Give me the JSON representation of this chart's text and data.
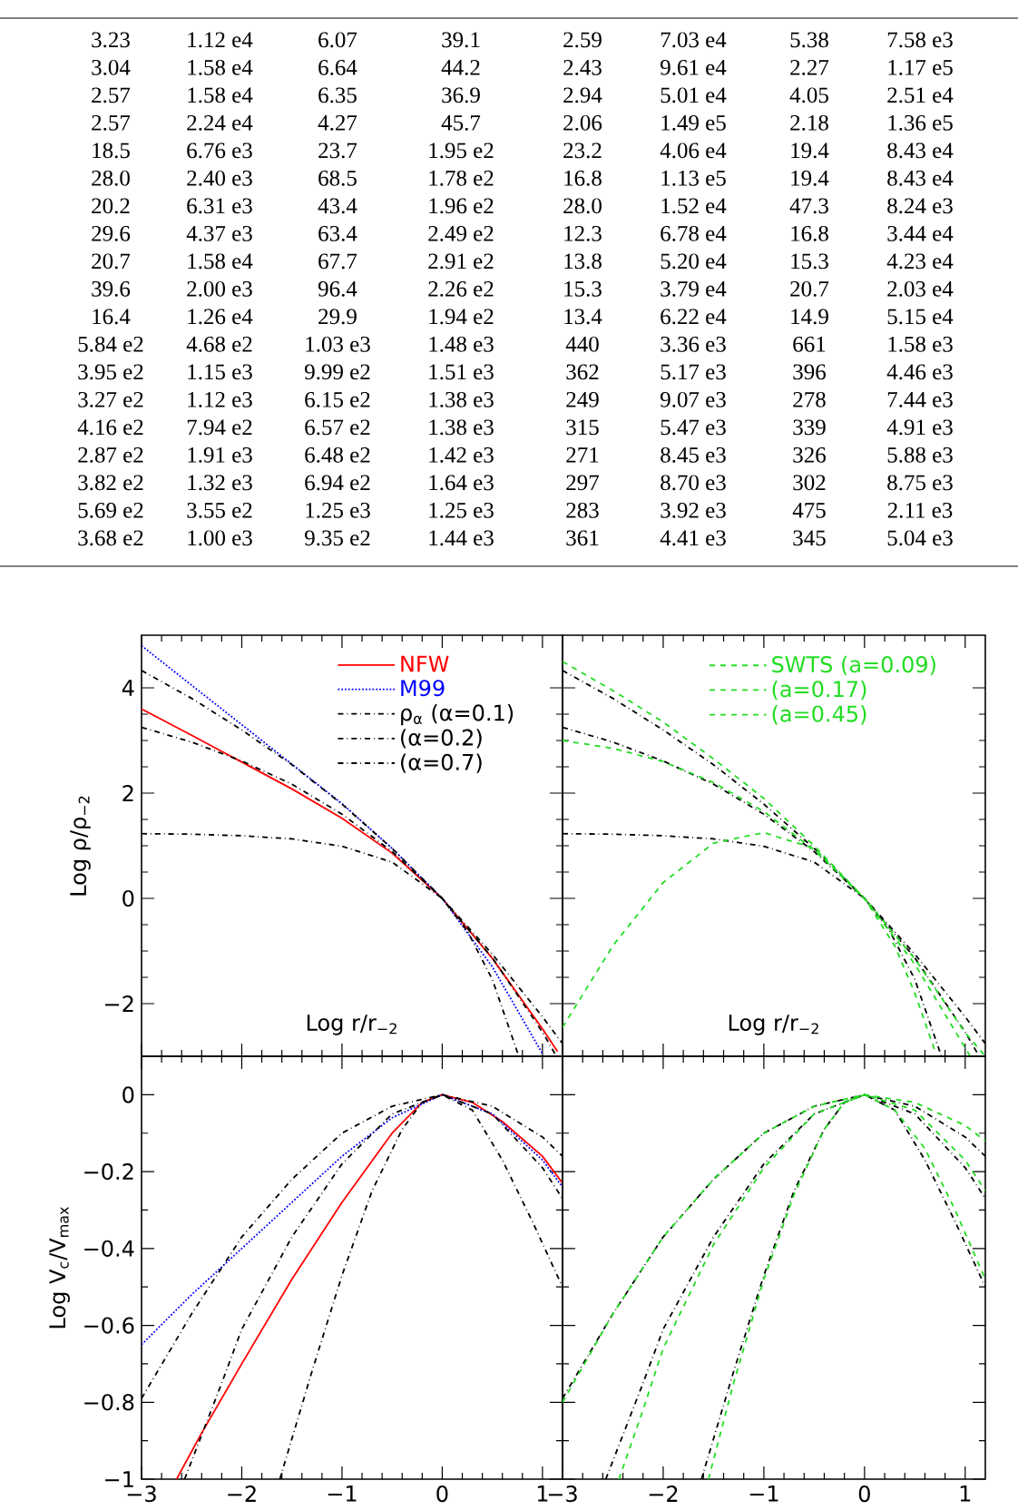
{
  "chart_data": [
    {
      "type": "other",
      "annotations": [
        "3.23",
        "1.12 e4",
        "6.07",
        "39.1",
        "2.59",
        "7.03 e4",
        "5.38",
        "7.58 e3",
        "3.04",
        "1.58 e4",
        "6.64",
        "44.2",
        "2.43",
        "9.61 e4",
        "2.27",
        "1.17 e5",
        "2.57",
        "1.58 e4",
        "6.35",
        "36.9",
        "2.94",
        "5.01 e4",
        "4.05",
        "2.51 e4",
        "2.57",
        "2.24 e4",
        "4.27",
        "45.7",
        "2.06",
        "1.49 e5",
        "2.18",
        "1.36 e5",
        "18.5",
        "6.76 e3",
        "23.7",
        "1.95 e2",
        "23.2",
        "4.06 e4",
        "19.4",
        "8.43 e4",
        "28.0",
        "2.40 e3",
        "68.5",
        "1.78 e2",
        "16.8",
        "1.13 e5",
        "19.4",
        "8.43 e4",
        "20.2",
        "6.31 e3",
        "43.4",
        "1.96 e2",
        "28.0",
        "1.52 e4",
        "47.3",
        "8.24 e3",
        "29.6",
        "4.37 e3",
        "63.4",
        "2.49 e2",
        "12.3",
        "6.78 e4",
        "16.8",
        "3.44 e4",
        "20.7",
        "1.58 e4",
        "67.7",
        "2.91 e2",
        "13.8",
        "5.20 e4",
        "15.3",
        "4.23 e4",
        "39.6",
        "2.00 e3",
        "96.4",
        "2.26 e2",
        "15.3",
        "3.79 e4",
        "20.7",
        "2.03 e4",
        "16.4",
        "1.26 e4",
        "29.9",
        "1.94 e2",
        "13.4",
        "6.22 e4",
        "14.9",
        "5.15 e4",
        "5.84 e2",
        "4.68 e2",
        "1.03 e3",
        "1.48 e3",
        "440",
        "3.36 e3",
        "661",
        "1.58 e3",
        "3.95 e2",
        "1.15 e3",
        "9.99 e2",
        "1.51 e3",
        "362",
        "5.17 e3",
        "396",
        "4.46 e3",
        "3.27 e2",
        "1.12 e3",
        "6.15 e2",
        "1.38 e3",
        "249",
        "9.07 e3",
        "278",
        "7.44 e3",
        "4.16 e2",
        "7.94 e2",
        "6.57 e2",
        "1.38 e3",
        "315",
        "5.47 e3",
        "339",
        "4.91 e3",
        "2.87 e2",
        "1.91 e3",
        "6.48 e2",
        "1.42 e3",
        "271",
        "8.45 e3",
        "326",
        "5.88 e3",
        "3.82 e2",
        "1.32 e3",
        "6.94 e2",
        "1.64 e3",
        "297",
        "8.70 e3",
        "302",
        "8.75 e3",
        "5.69 e2",
        "3.55 e2",
        "1.25 e3",
        "1.25 e3",
        "283",
        "3.92 e3",
        "475",
        "2.11 e3",
        "3.68 e2",
        "1.00 e3",
        "9.35 e2",
        "1.44 e3",
        "361",
        "4.41 e3",
        "345",
        "5.04 e3"
      ]
    },
    {
      "type": "line",
      "xlabel": "Log r/r$_{−2}$",
      "ylabel": "Log ρ/ρ$_{−2}$",
      "xlim": [
        -3,
        1.2
      ],
      "ylim": [
        -3,
        5
      ],
      "xticks": [
        -3,
        -2,
        -1,
        0,
        1
      ],
      "yticks": [
        {
          "value": -2,
          "label": "−2"
        },
        0,
        2,
        4
      ],
      "tick_labels": "y",
      "legend": "top right",
      "series": [
        {
          "name": "NFW",
          "color": "#ff0000",
          "line_style": "solid",
          "x": [
            -3,
            -2.5,
            -2,
            -1.5,
            -1,
            -0.5,
            0,
            0.5,
            1,
            1.15
          ],
          "values": [
            3.6,
            3.1,
            2.59,
            2.08,
            1.52,
            0.86,
            0,
            -1.14,
            -2.48,
            -2.91
          ]
        },
        {
          "name": "M99",
          "color": "#0000ff",
          "line_style": "dotted",
          "x": [
            -3,
            -2.5,
            -2,
            -1.5,
            -1,
            -0.5,
            0,
            0.5,
            1
          ],
          "values": [
            4.8,
            4.05,
            3.3,
            2.55,
            1.8,
            0.95,
            0,
            -1.3,
            -2.95
          ]
        },
        {
          "name": "ρ$_{α}$   (α=0.1)",
          "color": "#000000",
          "line_style": "dashdot",
          "x": [
            -3,
            -2.5,
            -2,
            -1.5,
            -1,
            -0.5,
            0,
            0.5,
            1,
            1.2
          ],
          "values": [
            4.33,
            3.8,
            3.2,
            2.54,
            1.79,
            0.95,
            0,
            -1.06,
            -2.25,
            -2.76
          ]
        },
        {
          "name": "(α=0.2)",
          "color": "#000000",
          "line_style": "dashdot",
          "x": [
            -3,
            -2.5,
            -2,
            -1.5,
            -1,
            -0.5,
            0,
            0.5,
            1,
            1.13
          ],
          "values": [
            3.25,
            2.97,
            2.61,
            2.17,
            1.6,
            0.89,
            0,
            -1.13,
            -2.54,
            -2.97
          ]
        },
        {
          "name": "(α=0.7)",
          "color": "#000000",
          "line_style": "dashdot",
          "x": [
            -3,
            -2.5,
            -2,
            -1.5,
            -1,
            -0.5,
            0,
            0.25,
            0.5,
            0.76
          ],
          "values": [
            1.23,
            1.22,
            1.19,
            1.13,
            0.99,
            0.69,
            0,
            -0.62,
            -1.54,
            -2.98
          ]
        }
      ]
    },
    {
      "type": "line",
      "xlabel": "Log r/r$_{−2}$",
      "xlim": [
        -3,
        1.2
      ],
      "ylim": [
        -3,
        5
      ],
      "xticks": [
        -3,
        -2,
        -1,
        0,
        1
      ],
      "yticks": [
        -2,
        0,
        2,
        4
      ],
      "tick_labels": false,
      "legend": "top right",
      "series": [
        {
          "color": "#000000",
          "line_style": "dashdot",
          "x": [
            -3,
            -2.5,
            -2,
            -1.5,
            -1,
            -0.5,
            0,
            0.5,
            1,
            1.2
          ],
          "values": [
            4.33,
            3.8,
            3.2,
            2.54,
            1.79,
            0.95,
            0,
            -1.06,
            -2.25,
            -2.76
          ]
        },
        {
          "color": "#000000",
          "line_style": "dashdot",
          "x": [
            -3,
            -2.5,
            -2,
            -1.5,
            -1,
            -0.5,
            0,
            0.5,
            1,
            1.13
          ],
          "values": [
            3.25,
            2.97,
            2.61,
            2.17,
            1.6,
            0.89,
            0,
            -1.13,
            -2.54,
            -2.97
          ]
        },
        {
          "color": "#000000",
          "line_style": "dashdot",
          "x": [
            -3,
            -2.5,
            -2,
            -1.5,
            -1,
            -0.5,
            0,
            0.25,
            0.5,
            0.76
          ],
          "values": [
            1.23,
            1.22,
            1.19,
            1.13,
            0.99,
            0.69,
            0,
            -0.62,
            -1.54,
            -2.98
          ]
        },
        {
          "name": "SWTS (a=0.09)",
          "color": "#22dd22",
          "line_style": "dashed",
          "x": [
            -3,
            -2.5,
            -2,
            -1.5,
            -1,
            -0.5,
            0,
            0.5,
            1,
            1.2
          ],
          "values": [
            4.5,
            3.95,
            3.35,
            2.65,
            1.9,
            1.0,
            0,
            -1.15,
            -2.55,
            -3.0
          ]
        },
        {
          "name": "(a=0.17)",
          "color": "#22dd22",
          "line_style": "dashed",
          "x": [
            -3,
            -2.5,
            -2,
            -1.5,
            -1,
            -0.5,
            0,
            0.5,
            1.05
          ],
          "values": [
            3.0,
            2.85,
            2.6,
            2.2,
            1.65,
            0.92,
            0,
            -1.25,
            -3.0
          ]
        },
        {
          "name": "(a=0.45)",
          "color": "#22dd22",
          "line_style": "dashed",
          "x": [
            -3,
            -2.5,
            -2,
            -1.5,
            -1,
            -0.5,
            0,
            0.3,
            0.5,
            0.7
          ],
          "values": [
            -2.45,
            -0.9,
            0.3,
            1.05,
            1.25,
            0.95,
            0,
            -0.9,
            -1.8,
            -2.9
          ]
        }
      ]
    },
    {
      "type": "line",
      "ylabel": "Log V$_{c}$/V$_{max}$",
      "xlim": [
        -3,
        1.2
      ],
      "ylim": [
        -1,
        0.1
      ],
      "xticks": [
        {
          "value": -3,
          "label": "−3"
        },
        {
          "value": -2,
          "label": "−2"
        },
        {
          "value": -1,
          "label": "−1"
        },
        0,
        1
      ],
      "yticks": [
        {
          "value": -1,
          "label": "−1"
        },
        {
          "value": -0.8,
          "label": "−0.8"
        },
        {
          "value": -0.6,
          "label": "−0.6"
        },
        {
          "value": -0.4,
          "label": "−0.4"
        },
        {
          "value": -0.2,
          "label": "−0.2"
        },
        0
      ],
      "series": [
        {
          "color": "#ff0000",
          "line_style": "solid",
          "x": [
            -2.65,
            -2.4,
            -2,
            -1.5,
            -1,
            -0.5,
            -0.2,
            0,
            0.3,
            0.6,
            1,
            1.2
          ],
          "values": [
            -1,
            -0.88,
            -0.7,
            -0.48,
            -0.28,
            -0.1,
            -0.02,
            0,
            -0.02,
            -0.07,
            -0.16,
            -0.23
          ]
        },
        {
          "color": "#0000ff",
          "line_style": "dotted",
          "x": [
            -3,
            -2.5,
            -2,
            -1.5,
            -1,
            -0.5,
            0,
            0.5,
            1,
            1.2
          ],
          "values": [
            -0.65,
            -0.52,
            -0.4,
            -0.28,
            -0.16,
            -0.06,
            0,
            -0.05,
            -0.17,
            -0.24
          ]
        },
        {
          "color": "#000000",
          "line_style": "dashdot",
          "x": [
            -3,
            -2.5,
            -2,
            -1.5,
            -1,
            -0.5,
            0,
            0.5,
            1,
            1.2
          ],
          "values": [
            -0.79,
            -0.57,
            -0.37,
            -0.22,
            -0.1,
            -0.03,
            0,
            -0.03,
            -0.11,
            -0.16
          ]
        },
        {
          "color": "#000000",
          "line_style": "dashdot",
          "x": [
            -2.57,
            -2.2,
            -2,
            -1.5,
            -1,
            -0.5,
            0,
            0.5,
            1,
            1.2
          ],
          "values": [
            -1,
            -0.75,
            -0.61,
            -0.37,
            -0.18,
            -0.05,
            0,
            -0.05,
            -0.19,
            -0.27
          ]
        },
        {
          "color": "#000000",
          "line_style": "dashdot",
          "x": [
            -1.62,
            -1.3,
            -1,
            -0.7,
            -0.4,
            -0.2,
            0,
            0.3,
            0.6,
            0.9,
            1.2
          ],
          "values": [
            -1,
            -0.72,
            -0.47,
            -0.25,
            -0.09,
            -0.02,
            0,
            -0.04,
            -0.17,
            -0.33,
            -0.5
          ]
        }
      ]
    },
    {
      "type": "line",
      "xlim": [
        -3,
        1.2
      ],
      "ylim": [
        -1,
        0.1
      ],
      "xticks": [
        {
          "value": -3,
          "label": "−3"
        },
        {
          "value": -2,
          "label": "−2"
        },
        {
          "value": -1,
          "label": "−1"
        },
        0,
        1
      ],
      "yticks": [
        -1,
        -0.8,
        -0.6,
        -0.4,
        -0.2,
        0
      ],
      "tick_labels": "x",
      "series": [
        {
          "color": "#000000",
          "line_style": "dashdot",
          "x": [
            -3,
            -2.5,
            -2,
            -1.5,
            -1,
            -0.5,
            0,
            0.5,
            1,
            1.2
          ],
          "values": [
            -0.79,
            -0.57,
            -0.37,
            -0.22,
            -0.1,
            -0.03,
            0,
            -0.03,
            -0.11,
            -0.16
          ]
        },
        {
          "color": "#000000",
          "line_style": "dashdot",
          "x": [
            -2.57,
            -2.2,
            -2,
            -1.5,
            -1,
            -0.5,
            0,
            0.5,
            1,
            1.2
          ],
          "values": [
            -1,
            -0.75,
            -0.61,
            -0.37,
            -0.18,
            -0.05,
            0,
            -0.05,
            -0.19,
            -0.27
          ]
        },
        {
          "color": "#000000",
          "line_style": "dashdot",
          "x": [
            -1.62,
            -1.3,
            -1,
            -0.7,
            -0.4,
            -0.2,
            0,
            0.3,
            0.6,
            0.9,
            1.2
          ],
          "values": [
            -1,
            -0.72,
            -0.47,
            -0.25,
            -0.09,
            -0.02,
            0,
            -0.04,
            -0.17,
            -0.33,
            -0.5
          ]
        },
        {
          "color": "#22dd22",
          "line_style": "dashed",
          "x": [
            -3,
            -2.5,
            -2,
            -1.5,
            -1,
            -0.5,
            0,
            0.5,
            1,
            1.2
          ],
          "values": [
            -0.8,
            -0.57,
            -0.37,
            -0.22,
            -0.1,
            -0.03,
            0,
            -0.02,
            -0.08,
            -0.12
          ]
        },
        {
          "color": "#22dd22",
          "line_style": "dashed",
          "x": [
            -2.44,
            -2.2,
            -2,
            -1.5,
            -1,
            -0.5,
            0,
            0.5,
            1,
            1.2
          ],
          "values": [
            -1,
            -0.82,
            -0.66,
            -0.39,
            -0.19,
            -0.05,
            0,
            -0.04,
            -0.17,
            -0.25
          ]
        },
        {
          "color": "#22dd22",
          "line_style": "dashed",
          "x": [
            -1.55,
            -1.3,
            -1,
            -0.7,
            -0.4,
            -0.2,
            0,
            0.3,
            0.6,
            0.9,
            1.2
          ],
          "values": [
            -1,
            -0.75,
            -0.48,
            -0.26,
            -0.09,
            -0.02,
            0,
            -0.04,
            -0.14,
            -0.3,
            -0.48
          ]
        }
      ]
    }
  ]
}
